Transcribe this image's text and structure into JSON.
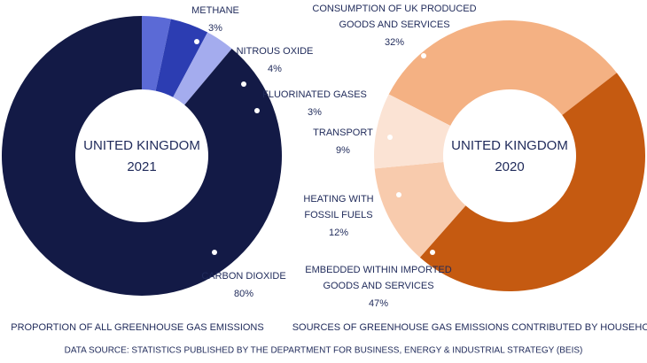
{
  "chart_data": [
    {
      "type": "donut",
      "center_label": [
        "UNITED KINGDOM",
        "2021"
      ],
      "caption": "PROPORTION OF ALL GREENHOUSE GAS EMISSIONS",
      "categories": [
        [
          "METHANE"
        ],
        [
          "NITROUS OXIDE"
        ],
        [
          "FLUORINATED GASES"
        ],
        [
          "CARBON DIOXIDE"
        ]
      ],
      "values": [
        3,
        4,
        3,
        80
      ],
      "value_labels": [
        "3%",
        "4%",
        "3%",
        "80%"
      ],
      "colors": [
        "#5b6ad6",
        "#2c3db2",
        "#a4acee",
        "#131a46"
      ]
    },
    {
      "type": "donut",
      "center_label": [
        "UNITED KINGDOM",
        "2020"
      ],
      "caption": "SOURCES OF GREENHOUSE GAS EMISSIONS CONTRIBUTED BY HOUSEHOLDS",
      "categories": [
        [
          "CONSUMPTION OF UK PRODUCED",
          "GOODS AND SERVICES"
        ],
        [
          "EMBEDDED WITHIN IMPORTED",
          "GOODS AND SERVICES"
        ],
        [
          "HEATING WITH",
          "FOSSIL FUELS"
        ],
        [
          "TRANSPORT"
        ]
      ],
      "values": [
        32,
        47,
        12,
        9
      ],
      "value_labels": [
        "32%",
        "47%",
        "12%",
        "9%"
      ],
      "colors": [
        "#f4b183",
        "#c55a11",
        "#f8cbad",
        "#fbe3d4"
      ]
    }
  ],
  "source": "DATA SOURCE:  STATISTICS PUBLISHED BY THE DEPARTMENT FOR BUSINESS, ENERGY & INDUSTRIAL STRATEGY (BEIS)"
}
